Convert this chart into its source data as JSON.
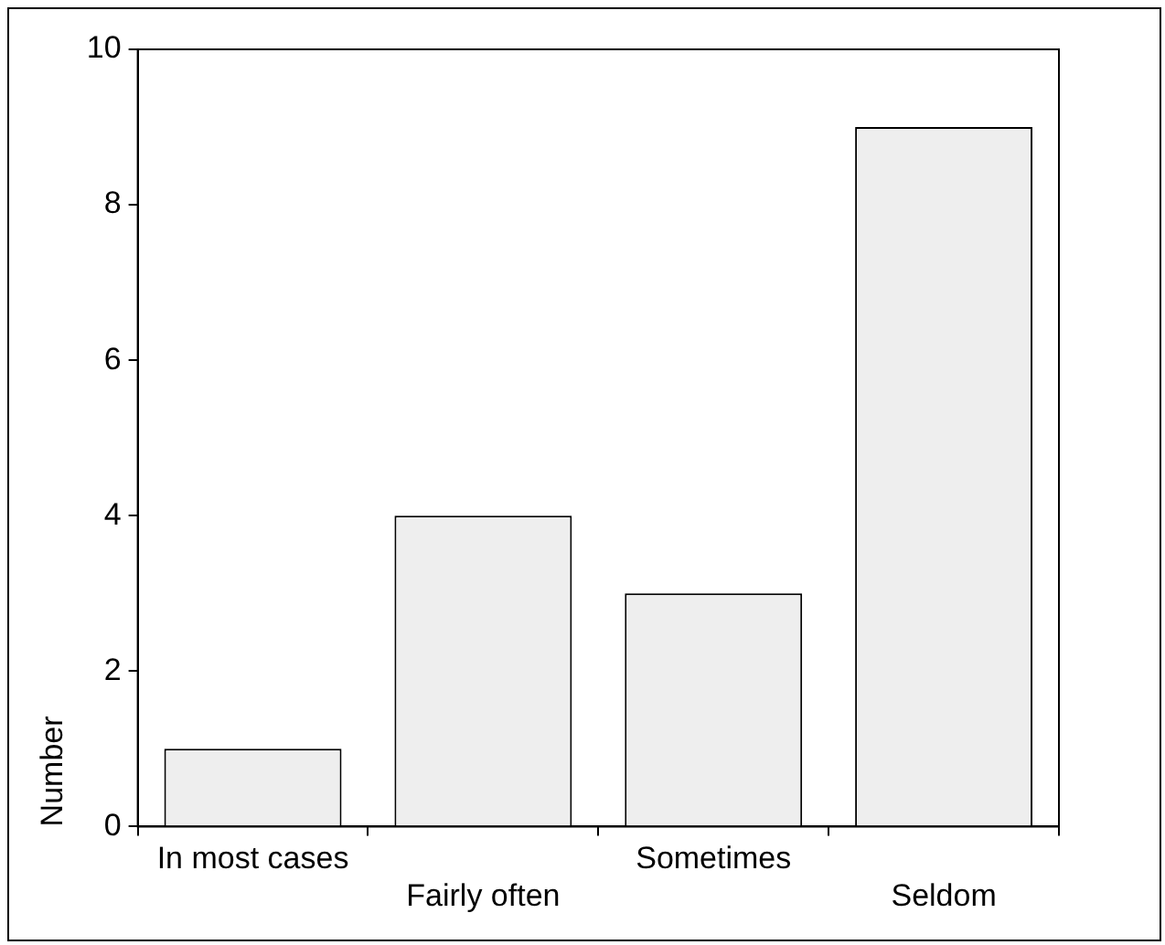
{
  "chart_data": {
    "type": "bar",
    "ylabel": "Number",
    "categories": [
      "In most cases",
      "Fairly often",
      "Sometimes",
      "Seldom"
    ],
    "values": [
      1,
      4,
      3,
      9
    ],
    "color": "#eeeeee",
    "ylim": [
      0,
      10
    ],
    "yticks": [
      0,
      2,
      4,
      6,
      8,
      10
    ],
    "grid": false
  }
}
